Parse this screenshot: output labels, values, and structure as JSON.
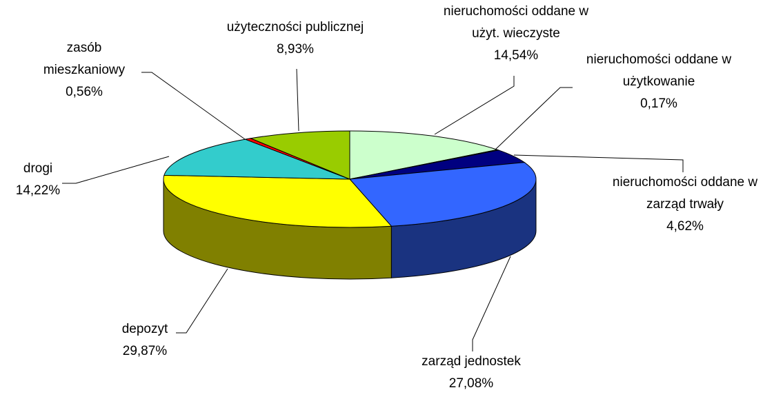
{
  "chart_data": {
    "type": "pie3d",
    "categories": [
      "nieruchomości oddane w użyt. wieczyste",
      "nieruchomości oddane w użytkowanie",
      "nieruchomości oddane w zarząd trwały",
      "zarząd jednostek",
      "depozyt",
      "drogi",
      "zasób mieszkaniowy",
      "użyteczności publicznej"
    ],
    "values": [
      14.54,
      0.17,
      4.62,
      27.08,
      29.87,
      14.22,
      0.56,
      8.93
    ],
    "value_labels": [
      "14,54%",
      "0,17%",
      "4,62%",
      "27,08%",
      "29,87%",
      "14,22%",
      "0,56%",
      "8,93%"
    ],
    "colors": [
      "#ccffcc",
      "#ccffff",
      "#000080",
      "#3366ff",
      "#ffff00",
      "#33cccc",
      "#ff0000",
      "#99cc00"
    ]
  }
}
